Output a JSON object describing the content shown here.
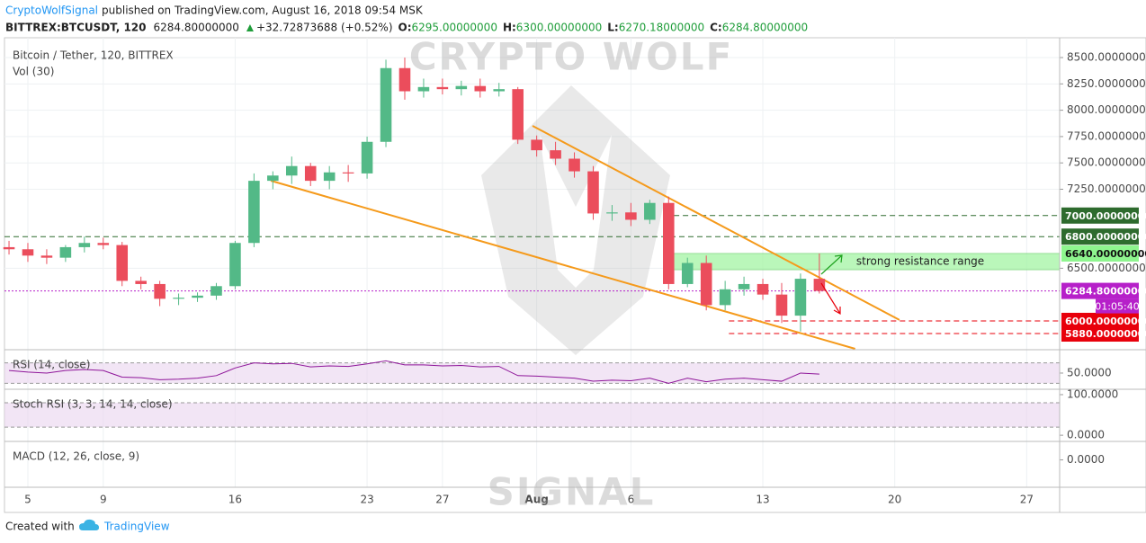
{
  "header": {
    "author": "CryptoWolfSignal",
    "published": "published on TradingView.com, August 16, 2018 09:54 MSK",
    "symbol": "BITTREX:BTCUSDT, 120",
    "last": "6284.80000000",
    "change": "+32.72873688 (+0.52%)",
    "ohlc": [
      {
        "label": "O:",
        "value": "6295.00000000"
      },
      {
        "label": "H:",
        "value": "6300.00000000"
      },
      {
        "label": "L:",
        "value": "6270.18000000"
      },
      {
        "label": "C:",
        "value": "6284.80000000"
      }
    ]
  },
  "footer": {
    "created": "Created with",
    "brand": "TradingView"
  },
  "watermark": [
    "CRYPTO WOLF",
    "SIGNAL"
  ],
  "chart_data": {
    "type": "candlestick",
    "title": "Bitcoin / Tether, 120, BITTREX",
    "volume_label": "Vol (30)",
    "up_color": "#53b987",
    "down_color": "#eb4d5c",
    "grid": true,
    "x": [
      4,
      5,
      6,
      7,
      8,
      9,
      10,
      11,
      12,
      13,
      14,
      15,
      16,
      17,
      18,
      19,
      20,
      21,
      22,
      23,
      24,
      25,
      26,
      27,
      28,
      29,
      30,
      31,
      32,
      33,
      34,
      35,
      36,
      37,
      38,
      39,
      40,
      41,
      42,
      43,
      44,
      45,
      46,
      47
    ],
    "open": [
      6700,
      6680,
      6620,
      6600,
      6700,
      6740,
      6720,
      6380,
      6350,
      6210,
      6220,
      6240,
      6330,
      6740,
      7330,
      7380,
      7470,
      7330,
      7410,
      7400,
      7700,
      8400,
      8180,
      8220,
      8200,
      8230,
      8180,
      8200,
      7720,
      7620,
      7540,
      7420,
      7020,
      7030,
      6960,
      7120,
      6350,
      6550,
      6150,
      6300,
      6350,
      6250,
      6050,
      6400
    ],
    "high": [
      6760,
      6740,
      6680,
      6720,
      6800,
      6790,
      6750,
      6420,
      6380,
      6260,
      6270,
      6360,
      6760,
      7400,
      7420,
      7560,
      7500,
      7470,
      7480,
      7750,
      8480,
      8500,
      8300,
      8300,
      8280,
      8300,
      8260,
      8220,
      7760,
      7700,
      7600,
      7470,
      7100,
      7120,
      7150,
      7180,
      6600,
      6620,
      6380,
      6420,
      6400,
      6360,
      6450,
      6640
    ],
    "low": [
      6630,
      6560,
      6540,
      6560,
      6650,
      6680,
      6330,
      6300,
      6140,
      6150,
      6180,
      6200,
      6300,
      6700,
      7250,
      7300,
      7280,
      7250,
      7320,
      7350,
      7650,
      8100,
      8120,
      8150,
      8140,
      8120,
      8130,
      7680,
      7560,
      7480,
      7360,
      6960,
      6950,
      6900,
      6920,
      6300,
      6320,
      6100,
      6100,
      6240,
      6200,
      5980,
      5900,
      6260
    ],
    "close": [
      6680,
      6620,
      6600,
      6700,
      6740,
      6720,
      6380,
      6350,
      6210,
      6220,
      6240,
      6330,
      6740,
      7330,
      7380,
      7470,
      7330,
      7410,
      7400,
      7700,
      8400,
      8180,
      8220,
      8200,
      8230,
      8180,
      8200,
      7720,
      7620,
      7540,
      7420,
      7020,
      7030,
      6960,
      7120,
      6350,
      6550,
      6150,
      6300,
      6350,
      6250,
      6050,
      6400,
      6284.8
    ],
    "xlim": [
      3.76,
      59.75
    ],
    "xticks": [
      5,
      9,
      16,
      23,
      27,
      {
        "value": 32,
        "label": "Aug"
      },
      {
        "value": 37,
        "label": "6"
      },
      {
        "value": 44,
        "label": "13"
      },
      {
        "value": 51,
        "label": "20"
      },
      {
        "value": 58,
        "label": "27"
      }
    ],
    "ylim": [
      5735,
      8688
    ],
    "yticks": [
      {
        "value": 6500,
        "label": "6500.00000000"
      },
      {
        "value": 7250,
        "label": "7250.00000000"
      },
      {
        "value": 7500,
        "label": "7500.00000000"
      },
      {
        "value": 7750,
        "label": "7750.00000000"
      },
      {
        "value": 8000,
        "label": "8000.00000000"
      },
      {
        "value": 8250,
        "label": "8250.00000000"
      },
      {
        "value": 8500,
        "label": "8500.00000000"
      }
    ],
    "levels": [
      {
        "value": 7000,
        "label": "7000.00000000",
        "color": "#2e6b2e",
        "text_color": "#ffffff",
        "style": "dashed",
        "x_start": 38.8
      },
      {
        "value": 6800,
        "label": "6800.00000000",
        "color": "#2e6b2e",
        "text_color": "#ffffff",
        "style": "dashed",
        "x_start": 3.76
      },
      {
        "value": 6640,
        "label": "6640.00000000",
        "color": "#8ef58e",
        "text_color": "#111111",
        "style": "none",
        "x_start": 39.23
      },
      {
        "value": 6284.8,
        "label": "6284.80000000",
        "color": "#b620c9",
        "text_color": "#ffffff",
        "style": "dotted",
        "x_start": 3.76
      },
      {
        "value": 6000,
        "label": "6000.00000000",
        "color": "#e8000b",
        "text_color": "#ffffff",
        "style": "dashed",
        "x_start": 42.2
      },
      {
        "value": 5880,
        "label": "5880.00000000",
        "color": "#e8000b",
        "text_color": "#ffffff",
        "style": "dashed",
        "x_start": 42.2
      }
    ],
    "countdown": "01:05:40",
    "zones": [
      {
        "from": 6486,
        "to": 6640,
        "x_start": 39.23,
        "label": "strong resistance range",
        "color": "#9ef59e"
      }
    ],
    "trendlines": [
      {
        "x": [
          31.78,
          51.25
        ],
        "y": [
          7852,
          6009
        ],
        "color": "#f59a1b"
      },
      {
        "x": [
          17.89,
          48.9
        ],
        "y": [
          7331,
          5735
        ],
        "color": "#f59a1b"
      }
    ],
    "indicators": [
      {
        "name": "RSI (14, close)",
        "ylim": [
          20,
          94
        ],
        "yticks": [
          {
            "value": 50,
            "label": "50.0000"
          }
        ],
        "bands": [
          30,
          70
        ],
        "color": "#8e1599",
        "values": [
          55,
          52,
          50,
          55,
          57,
          55,
          42,
          41,
          37,
          38,
          40,
          45,
          60,
          70,
          68,
          69,
          62,
          64,
          63,
          68,
          74,
          66,
          66,
          64,
          65,
          62,
          63,
          45,
          44,
          42,
          40,
          34,
          36,
          35,
          40,
          30,
          40,
          33,
          38,
          40,
          37,
          34,
          50,
          48
        ]
      },
      {
        "name": "Stoch RSI (3, 3, 14, 14, close)",
        "ylim": [
          -13,
          111
        ],
        "yticks": [
          {
            "value": 100,
            "label": "100.0000"
          },
          {
            "value": 0,
            "label": "0.0000"
          }
        ],
        "bands": [
          20,
          80
        ],
        "color": "#8e1599"
      },
      {
        "name": "MACD (12, 26, close, 9)",
        "ylim": [
          -160,
          110
        ],
        "yticks": [
          {
            "value": 0,
            "label": "0.0000"
          }
        ],
        "color": "#8e1599"
      }
    ]
  }
}
